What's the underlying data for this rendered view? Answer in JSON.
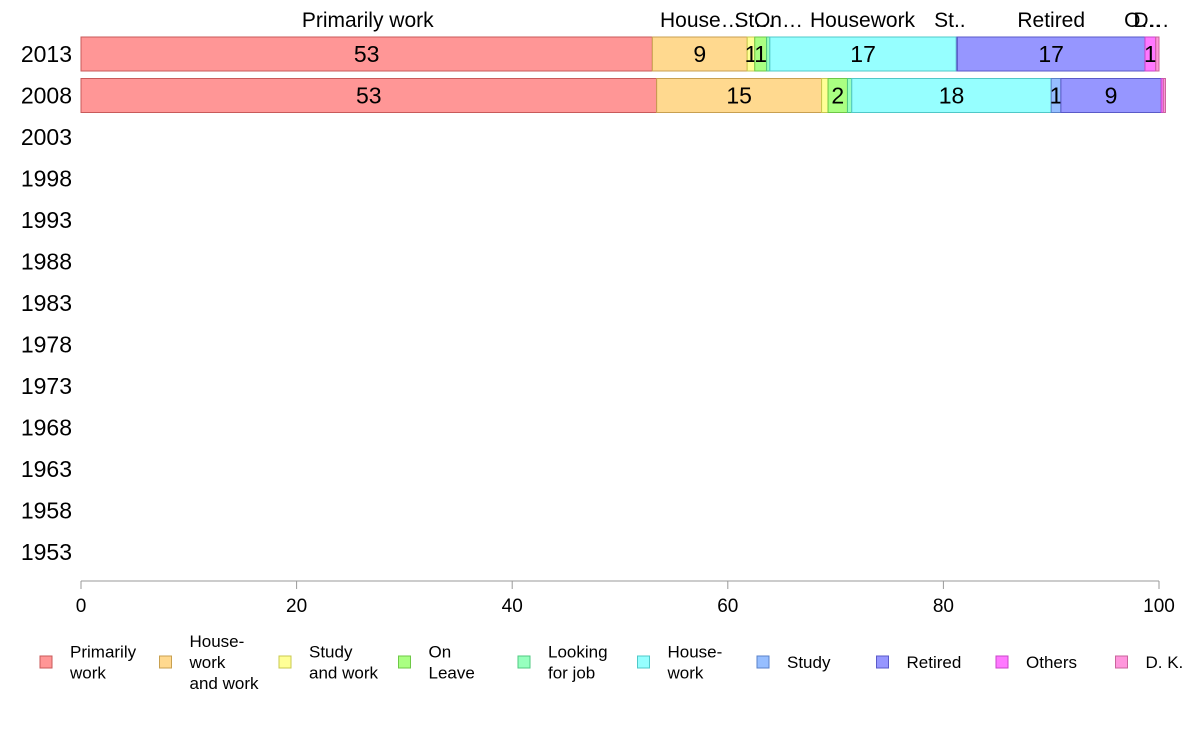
{
  "chart_data": {
    "type": "bar",
    "orientation": "horizontal",
    "stacked": true,
    "categories": [
      "2013",
      "2008",
      "2003",
      "1998",
      "1993",
      "1988",
      "1983",
      "1978",
      "1973",
      "1968",
      "1963",
      "1958",
      "1953"
    ],
    "xlim": [
      0,
      100
    ],
    "xticks": [
      "0",
      "20",
      "40",
      "60",
      "80",
      "100"
    ],
    "grid": false,
    "legend_position": "bottom",
    "series": [
      {
        "key": "pw",
        "name": "Primarily work",
        "legend_lines": [
          "Primarily",
          "work"
        ],
        "color": "#ff9696",
        "stroke": "#c85a5a",
        "values": [
          53,
          53.4,
          null,
          null,
          null,
          null,
          null,
          null,
          null,
          null,
          null,
          null,
          null
        ],
        "labels": [
          "53",
          "53",
          "",
          "",
          "",
          "",
          "",
          "",
          "",
          "",
          "",
          "",
          ""
        ]
      },
      {
        "key": "hw",
        "name": "House-work and work",
        "legend_lines": [
          "House-",
          "work",
          "and work"
        ],
        "color": "#ffd98f",
        "stroke": "#c8a050",
        "values": [
          8.8,
          15.3,
          null,
          null,
          null,
          null,
          null,
          null,
          null,
          null,
          null,
          null,
          null
        ],
        "labels": [
          "9",
          "15",
          "",
          "",
          "",
          "",
          "",
          "",
          "",
          "",
          "",
          "",
          ""
        ]
      },
      {
        "key": "sw",
        "name": "Study and work",
        "legend_lines": [
          "Study",
          "and work"
        ],
        "color": "#ffff96",
        "stroke": "#c8c850",
        "values": [
          0.7,
          0.6,
          null,
          null,
          null,
          null,
          null,
          null,
          null,
          null,
          null,
          null,
          null
        ],
        "labels": [
          "1",
          "",
          "",
          "",
          "",
          "",
          "",
          "",
          "",
          "",
          "",
          "",
          ""
        ]
      },
      {
        "key": "ol",
        "name": "On Leave",
        "legend_lines": [
          "On",
          "Leave"
        ],
        "color": "#aaff82",
        "stroke": "#6ec846",
        "values": [
          1.1,
          1.8,
          null,
          null,
          null,
          null,
          null,
          null,
          null,
          null,
          null,
          null,
          null
        ],
        "labels": [
          "1",
          "2",
          "",
          "",
          "",
          "",
          "",
          "",
          "",
          "",
          "",
          "",
          ""
        ]
      },
      {
        "key": "lj",
        "name": "Looking for job",
        "legend_lines": [
          "Looking",
          "for job"
        ],
        "color": "#96ffbe",
        "stroke": "#50c882",
        "values": [
          0.3,
          0.4,
          null,
          null,
          null,
          null,
          null,
          null,
          null,
          null,
          null,
          null,
          null
        ],
        "labels": [
          "",
          "",
          "",
          "",
          "",
          "",
          "",
          "",
          "",
          "",
          "",
          "",
          ""
        ]
      },
      {
        "key": "hh",
        "name": "House-work",
        "legend_lines": [
          "House-",
          "work"
        ],
        "color": "#96ffff",
        "stroke": "#50c8c8",
        "values": [
          17.3,
          18.5,
          null,
          null,
          null,
          null,
          null,
          null,
          null,
          null,
          null,
          null,
          null
        ],
        "labels": [
          "17",
          "18",
          "",
          "",
          "",
          "",
          "",
          "",
          "",
          "",
          "",
          "",
          ""
        ]
      },
      {
        "key": "st",
        "name": "Study",
        "legend_lines": [
          "Study"
        ],
        "color": "#96beff",
        "stroke": "#5a82c8",
        "values": [
          0.1,
          0.9,
          null,
          null,
          null,
          null,
          null,
          null,
          null,
          null,
          null,
          null,
          null
        ],
        "labels": [
          "",
          "1",
          "",
          "",
          "",
          "",
          "",
          "",
          "",
          "",
          "",
          "",
          ""
        ]
      },
      {
        "key": "re",
        "name": "Retired",
        "legend_lines": [
          "Retired"
        ],
        "color": "#9696ff",
        "stroke": "#5a5ac8",
        "values": [
          17.4,
          9.3,
          null,
          null,
          null,
          null,
          null,
          null,
          null,
          null,
          null,
          null,
          null
        ],
        "labels": [
          "17",
          "9",
          "",
          "",
          "",
          "",
          "",
          "",
          "",
          "",
          "",
          "",
          ""
        ]
      },
      {
        "key": "ot",
        "name": "Others",
        "legend_lines": [
          "Others"
        ],
        "color": "#ff78ff",
        "stroke": "#c846c8",
        "values": [
          1.0,
          0.2,
          null,
          null,
          null,
          null,
          null,
          null,
          null,
          null,
          null,
          null,
          null
        ],
        "labels": [
          "1",
          "",
          "",
          "",
          "",
          "",
          "",
          "",
          "",
          "",
          "",
          "",
          ""
        ]
      },
      {
        "key": "dk",
        "name": "D. K.",
        "legend_lines": [
          "D. K."
        ],
        "color": "#ff96dc",
        "stroke": "#c8649b",
        "values": [
          0.3,
          0.2,
          null,
          null,
          null,
          null,
          null,
          null,
          null,
          null,
          null,
          null,
          null
        ],
        "labels": [
          "",
          "",
          "",
          "",
          "",
          "",
          "",
          "",
          "",
          "",
          "",
          "",
          ""
        ]
      }
    ],
    "top_labels": [
      {
        "text": "Primarily work",
        "x": 26.6
      },
      {
        "text": "House…",
        "x": 57.5
      },
      {
        "text": "St…",
        "x": 62.5
      },
      {
        "text": "On…",
        "x": 64.7
      },
      {
        "text": "Housework",
        "x": 72.5
      },
      {
        "text": "St..",
        "x": 80.6
      },
      {
        "text": "Retired",
        "x": 90.0
      },
      {
        "text": "O…",
        "x": 98.5
      },
      {
        "text": "D…",
        "x": 99.3
      }
    ]
  }
}
